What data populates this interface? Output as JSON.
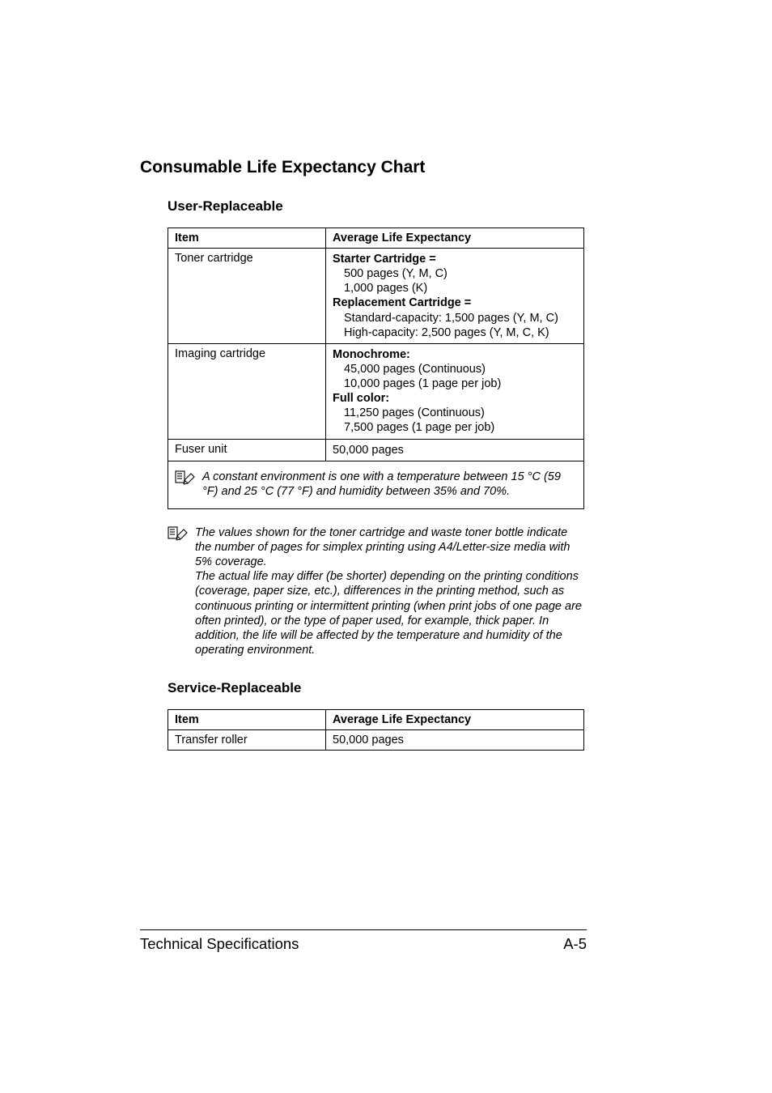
{
  "heading": "Consumable Life Expectancy Chart",
  "user_section": {
    "title": "User-Replaceable",
    "columns": [
      "Item",
      "Average Life Expectancy"
    ],
    "rows": [
      {
        "item": "Toner cartridge",
        "lines": [
          {
            "text": "Starter Cartridge =",
            "bold": true,
            "indent": false
          },
          {
            "text": "500 pages (Y, M, C)",
            "bold": false,
            "indent": true
          },
          {
            "text": "1,000 pages (K)",
            "bold": false,
            "indent": true
          },
          {
            "text": "Replacement Cartridge =",
            "bold": true,
            "indent": false
          },
          {
            "text": "Standard-capacity: 1,500 pages (Y, M, C)",
            "bold": false,
            "indent": true
          },
          {
            "text": "High-capacity: 2,500 pages (Y, M, C, K)",
            "bold": false,
            "indent": true
          }
        ]
      },
      {
        "item": "Imaging cartridge",
        "lines": [
          {
            "text": "Monochrome:",
            "bold": true,
            "indent": false
          },
          {
            "text": "45,000 pages (Continuous)",
            "bold": false,
            "indent": true
          },
          {
            "text": "10,000 pages (1 page per job)",
            "bold": false,
            "indent": true
          },
          {
            "text": "Full color:",
            "bold": true,
            "indent": false
          },
          {
            "text": "11,250 pages (Continuous)",
            "bold": false,
            "indent": true
          },
          {
            "text": "7,500 pages (1 page per job)",
            "bold": false,
            "indent": true
          }
        ]
      },
      {
        "item": "Fuser unit",
        "lines": [
          {
            "text": "50,000 pages",
            "bold": false,
            "indent": false
          }
        ]
      }
    ],
    "note": "A constant environment is one with a temperature between 15 °C (59 °F) and 25 °C (77 °F) and humidity between 35% and 70%."
  },
  "body_note": "The values shown for the toner cartridge and waste toner bottle indicate the number of pages for simplex printing using A4/Letter-size media with 5% coverage.\nThe actual life may differ (be shorter) depending on the printing conditions (coverage, paper size, etc.), differences in the printing method, such as continuous printing or intermittent printing (when print jobs of one page are often printed), or the type of paper used, for example, thick paper. In addition, the life will be affected by the temperature and humidity of the operating environment.",
  "service_section": {
    "title": "Service-Replaceable",
    "columns": [
      "Item",
      "Average Life Expectancy"
    ],
    "rows": [
      {
        "item": "Transfer roller",
        "value": "50,000 pages"
      }
    ]
  },
  "footer": {
    "left": "Technical Specifications",
    "right": "A-5"
  },
  "colors": {
    "text": "#000000",
    "background": "#ffffff",
    "border": "#000000"
  },
  "fonts": {
    "family": "Arial, Helvetica, sans-serif",
    "h2_size_pt": 16,
    "h3_size_pt": 13,
    "body_size_pt": 11,
    "footer_size_pt": 14
  }
}
